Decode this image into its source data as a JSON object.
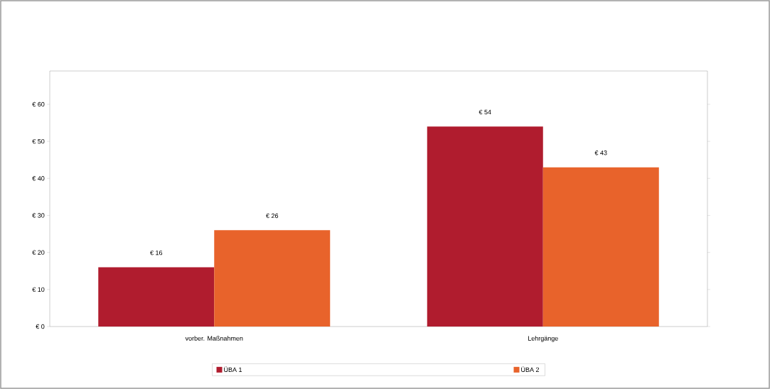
{
  "chart_data": {
    "type": "bar",
    "categories": [
      "vorber. Maßnahmen",
      "Lehrgänge"
    ],
    "series": [
      {
        "name": "ÜBA 1",
        "color": "#b01c2e",
        "values": [
          16,
          54
        ],
        "value_labels": [
          "€ 16",
          "€ 54"
        ]
      },
      {
        "name": "ÜBA 2",
        "color": "#e8632b",
        "values": [
          26,
          43
        ],
        "value_labels": [
          "€ 26",
          "€ 43"
        ]
      }
    ],
    "ylim": [
      0,
      69
    ],
    "yticks": [
      {
        "value": 0,
        "label": "€ 0"
      },
      {
        "value": 10,
        "label": "€ 10"
      },
      {
        "value": 20,
        "label": "€ 20"
      },
      {
        "value": 30,
        "label": "€ 30"
      },
      {
        "value": 40,
        "label": "€ 40"
      },
      {
        "value": 50,
        "label": "€ 50"
      },
      {
        "value": 60,
        "label": "€ 60"
      }
    ],
    "legend": "bottom"
  }
}
